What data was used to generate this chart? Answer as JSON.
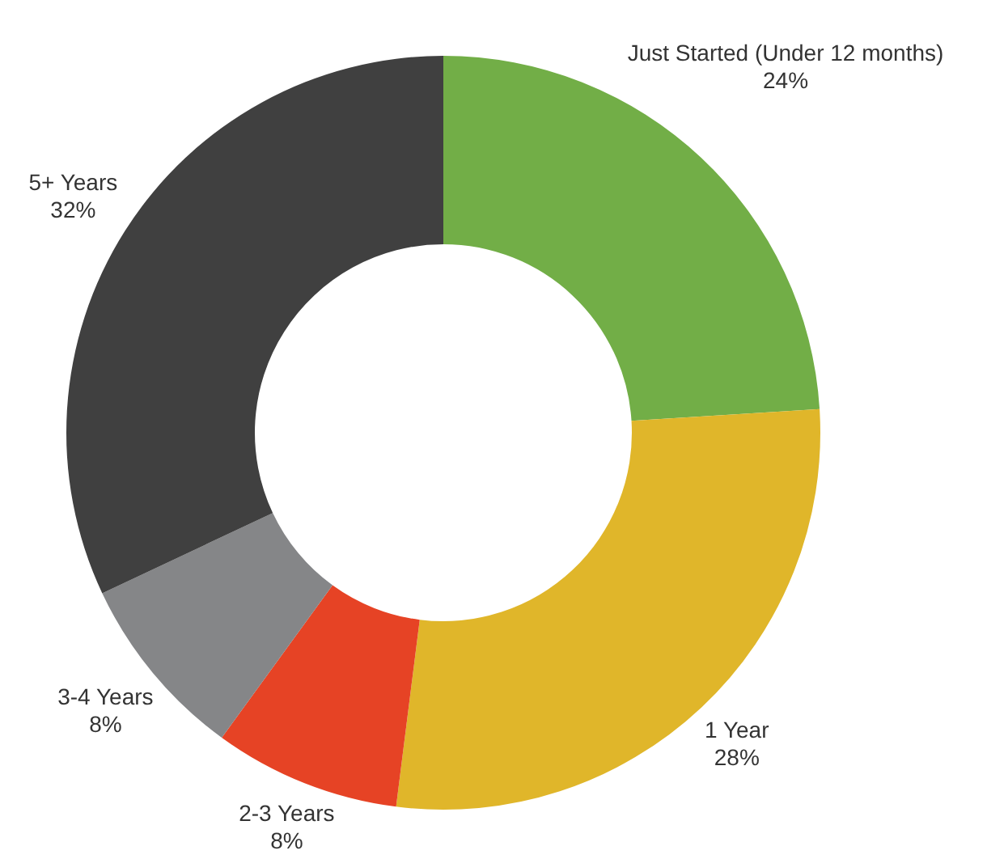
{
  "chart_data": {
    "type": "donut",
    "categories": [
      "Just Started (Under 12 months)",
      "1 Year",
      "2-3 Years",
      "3-4 Years",
      "5+ Years"
    ],
    "values": [
      24,
      28,
      8,
      8,
      32
    ],
    "colors": [
      "#72ae47",
      "#e0b62a",
      "#e64325",
      "#858688",
      "#404040"
    ],
    "value_labels": [
      "24%",
      "28%",
      "8%",
      "8%",
      "32%"
    ],
    "legend": false
  }
}
